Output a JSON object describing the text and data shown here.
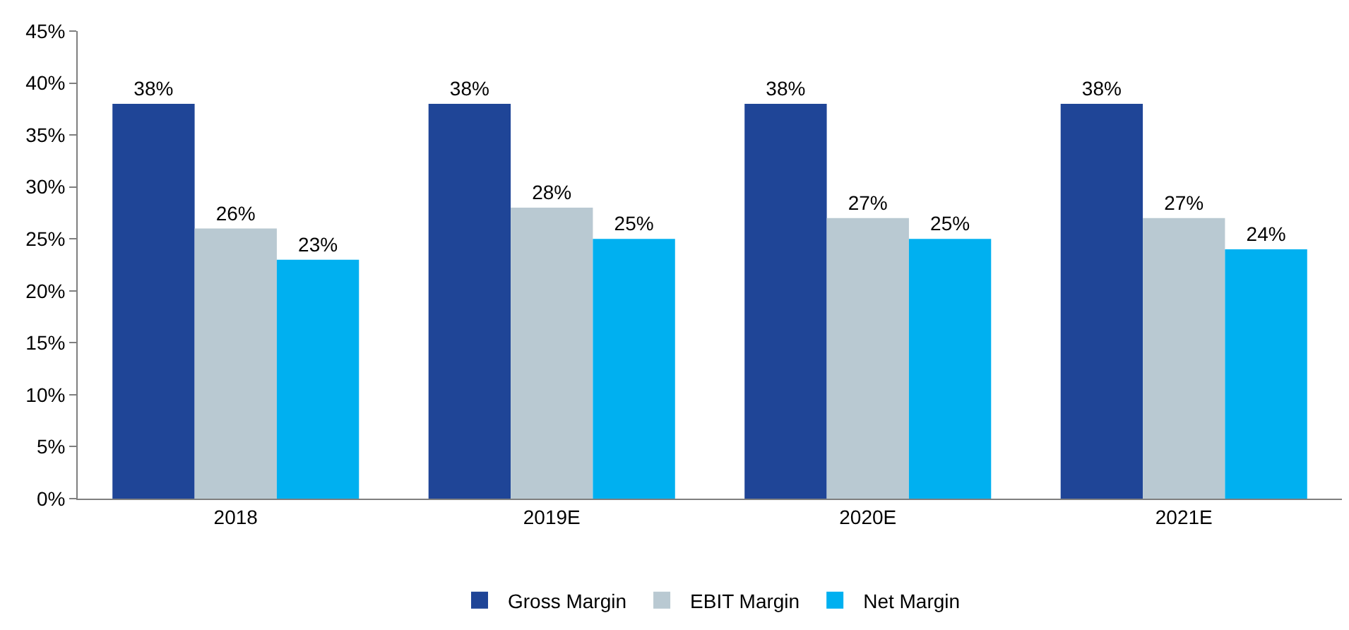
{
  "chart_data": {
    "type": "bar",
    "categories": [
      "2018",
      "2019E",
      "2020E",
      "2021E"
    ],
    "series": [
      {
        "name": "Gross Margin",
        "color": "#1f4597",
        "values": [
          38,
          38,
          38,
          38
        ],
        "value_labels": [
          "38%",
          "38%",
          "38%",
          "38%"
        ]
      },
      {
        "name": "EBIT Margin",
        "color": "#b9c9d2",
        "values": [
          26,
          28,
          27,
          27
        ],
        "value_labels": [
          "26%",
          "28%",
          "27%",
          "27%"
        ]
      },
      {
        "name": "Net Margin",
        "color": "#00b0f0",
        "values": [
          23,
          25,
          25,
          24
        ],
        "value_labels": [
          "23%",
          "25%",
          "25%",
          "24%"
        ]
      }
    ],
    "ylim": [
      0,
      45
    ],
    "yticks": [
      {
        "value": 0,
        "label": "0%"
      },
      {
        "value": 5,
        "label": "5%"
      },
      {
        "value": 10,
        "label": "10%"
      },
      {
        "value": 15,
        "label": "15%"
      },
      {
        "value": 20,
        "label": "20%"
      },
      {
        "value": 25,
        "label": "25%"
      },
      {
        "value": 30,
        "label": "30%"
      },
      {
        "value": 35,
        "label": "35%"
      },
      {
        "value": 40,
        "label": "40%"
      },
      {
        "value": 45,
        "label": "45%"
      }
    ],
    "legend": "bottom"
  }
}
